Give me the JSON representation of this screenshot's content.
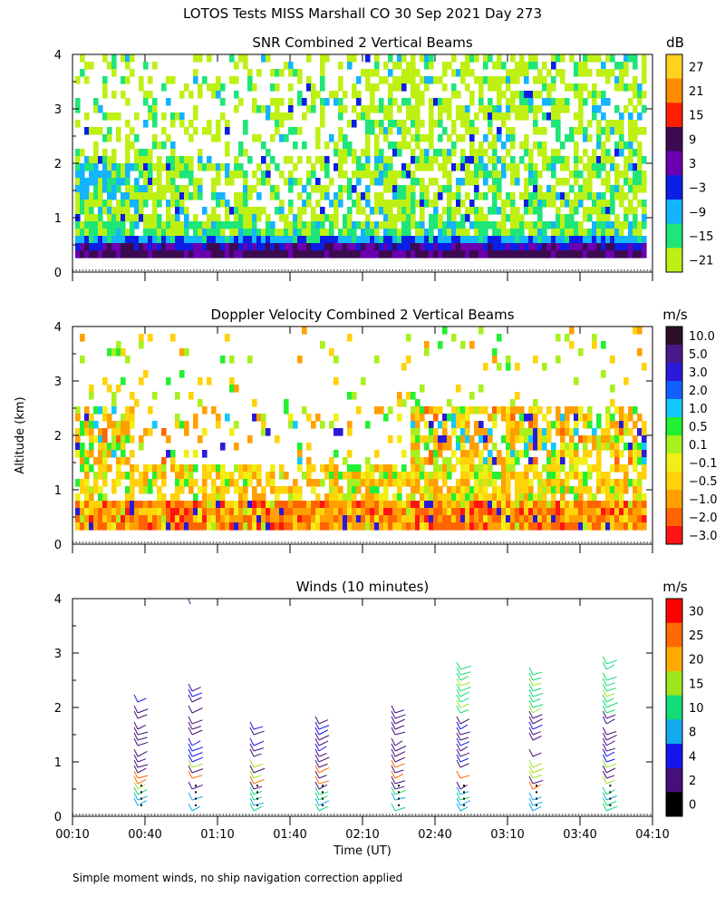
{
  "figure_title": "LOTOS Tests MISS Marshall CO  30 Sep 2021 Day 273",
  "ylabel": "Altitude (km)",
  "xlabel": "Time (UT)",
  "footnote": "Simple moment winds, no ship navigation correction applied",
  "chart_data": [
    {
      "type": "heatmap",
      "title": "SNR Combined 2 Vertical Beams",
      "units": "dB",
      "x_range_hours": [
        0.1667,
        4.1667
      ],
      "x_ticks": [
        "00:10",
        "00:40",
        "01:10",
        "01:40",
        "02:10",
        "02:40",
        "03:10",
        "03:40",
        "04:10"
      ],
      "ylim": [
        0,
        4
      ],
      "y_ticks": [
        "0",
        "1",
        "2",
        "3",
        "4"
      ],
      "colorbar_labels": [
        "27",
        "21",
        "15",
        "9",
        "3",
        "−3",
        "−9",
        "−15",
        "−21"
      ],
      "colorbar_colors": [
        "#ffd21e",
        "#ff8c00",
        "#ff1e00",
        "#3c0a50",
        "#6a00b0",
        "#0a1ee6",
        "#14b4ff",
        "#1ee678",
        "#bef014"
      ],
      "description_of_field": "Low SNR (-21 to -15 dB) aloft 1-4 km, higher SNR near surface (0.2-0.6 km) reaching 9-15 dB"
    },
    {
      "type": "heatmap",
      "title": "Doppler Velocity Combined 2 Vertical Beams",
      "units": "m/s",
      "x_range_hours": [
        0.1667,
        4.1667
      ],
      "ylim": [
        0,
        4
      ],
      "y_ticks": [
        "0",
        "1",
        "2",
        "3",
        "4"
      ],
      "colorbar_labels": [
        "10.0",
        "5.0",
        "3.0",
        "2.0",
        "1.0",
        "0.5",
        "0.1",
        "−0.1",
        "−0.5",
        "−1.0",
        "−2.0",
        "−3.0"
      ],
      "colorbar_colors": [
        "#2a0f28",
        "#4a1a8c",
        "#2a1ad8",
        "#1060ff",
        "#12c8ff",
        "#22f032",
        "#a8f01e",
        "#f0f014",
        "#ffd20a",
        "#ffa000",
        "#ff6400",
        "#ff1414"
      ],
      "description_of_field": "Mostly -0.5 to -2 m/s below 1.5 km with noisy values aloft"
    },
    {
      "type": "scatter",
      "title": "Winds (10 minutes)",
      "units": "m/s",
      "x_range_hours": [
        0.1667,
        4.1667
      ],
      "x_ticks": [
        "00:10",
        "00:40",
        "01:10",
        "01:40",
        "02:10",
        "02:40",
        "03:10",
        "03:40",
        "04:10"
      ],
      "ylim": [
        0,
        4
      ],
      "y_ticks": [
        "0",
        "1",
        "2",
        "3",
        "4"
      ],
      "profile_times_hours": [
        0.6167,
        0.9917,
        1.4167,
        1.8667,
        2.3917,
        2.8417,
        3.3417,
        3.85
      ],
      "colorbar_labels": [
        "30",
        "25",
        "20",
        "15",
        "10",
        "8",
        "4",
        "2",
        "0"
      ],
      "colorbar_colors": [
        "#ff0000",
        "#ff6a00",
        "#ffaa00",
        "#a0e61e",
        "#14dc78",
        "#14aaf0",
        "#1414f0",
        "#46107a",
        "#000000"
      ]
    }
  ]
}
